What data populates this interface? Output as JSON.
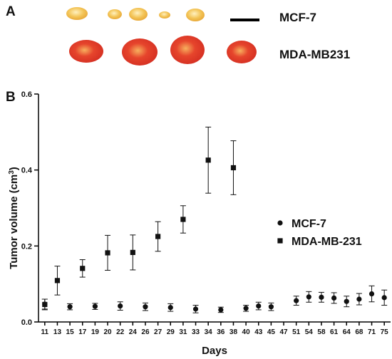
{
  "panel_a": {
    "label": "A",
    "rows": [
      {
        "name": "MCF-7",
        "color": "#f2c05a",
        "rim": "#fbe6a0",
        "count": 5
      },
      {
        "name": "MDA-MB231",
        "color": "#e23d2a",
        "rim": "#f39a5a",
        "count": 4
      }
    ]
  },
  "panel_b": {
    "label": "B"
  },
  "chart_data": {
    "type": "scatter",
    "xlabel": "Days",
    "ylabel": "Tumor volume (cm",
    "ylabel_sup": "3",
    "ylabel_close": ")",
    "ylim": [
      0,
      0.6
    ],
    "yticks": [
      0.0,
      0.2,
      0.4,
      0.6
    ],
    "ytick_labels": [
      "0.0",
      "0.2",
      "0.4",
      "0.6"
    ],
    "categories": [
      "11",
      "13",
      "15",
      "17",
      "19",
      "20",
      "22",
      "24",
      "26",
      "27",
      "29",
      "31",
      "33",
      "34",
      "36",
      "38",
      "40",
      "43",
      "45",
      "47",
      "51",
      "54",
      "58",
      "61",
      "64",
      "68",
      "71",
      "75"
    ],
    "legend_position": "right",
    "series": [
      {
        "name": "MCF-7",
        "marker": "circle",
        "color": "#111111",
        "points": [
          {
            "x": "11",
            "y": 0.047,
            "err": 0.013
          },
          {
            "x": "15",
            "y": 0.04,
            "err": 0.008
          },
          {
            "x": "19",
            "y": 0.041,
            "err": 0.008
          },
          {
            "x": "22",
            "y": 0.042,
            "err": 0.011
          },
          {
            "x": "26",
            "y": 0.04,
            "err": 0.01
          },
          {
            "x": "29",
            "y": 0.038,
            "err": 0.01
          },
          {
            "x": "33",
            "y": 0.034,
            "err": 0.01
          },
          {
            "x": "36",
            "y": 0.032,
            "err": 0.007
          },
          {
            "x": "40",
            "y": 0.036,
            "err": 0.008
          },
          {
            "x": "43",
            "y": 0.042,
            "err": 0.01
          },
          {
            "x": "45",
            "y": 0.04,
            "err": 0.01
          },
          {
            "x": "51",
            "y": 0.056,
            "err": 0.012
          },
          {
            "x": "54",
            "y": 0.066,
            "err": 0.014
          },
          {
            "x": "58",
            "y": 0.065,
            "err": 0.013
          },
          {
            "x": "61",
            "y": 0.063,
            "err": 0.014
          },
          {
            "x": "64",
            "y": 0.054,
            "err": 0.014
          },
          {
            "x": "68",
            "y": 0.06,
            "err": 0.015
          },
          {
            "x": "71",
            "y": 0.074,
            "err": 0.021
          },
          {
            "x": "75",
            "y": 0.064,
            "err": 0.02
          }
        ]
      },
      {
        "name": "MDA-MB-231",
        "marker": "square",
        "color": "#111111",
        "points": [
          {
            "x": "11",
            "y": 0.046,
            "err": 0.014
          },
          {
            "x": "13",
            "y": 0.109,
            "err": 0.038
          },
          {
            "x": "17",
            "y": 0.141,
            "err": 0.023
          },
          {
            "x": "20",
            "y": 0.182,
            "err": 0.046
          },
          {
            "x": "24",
            "y": 0.183,
            "err": 0.046
          },
          {
            "x": "27",
            "y": 0.225,
            "err": 0.039
          },
          {
            "x": "31",
            "y": 0.27,
            "err": 0.036
          },
          {
            "x": "34",
            "y": 0.426,
            "err": 0.087
          },
          {
            "x": "38",
            "y": 0.406,
            "err": 0.071
          }
        ]
      }
    ]
  }
}
